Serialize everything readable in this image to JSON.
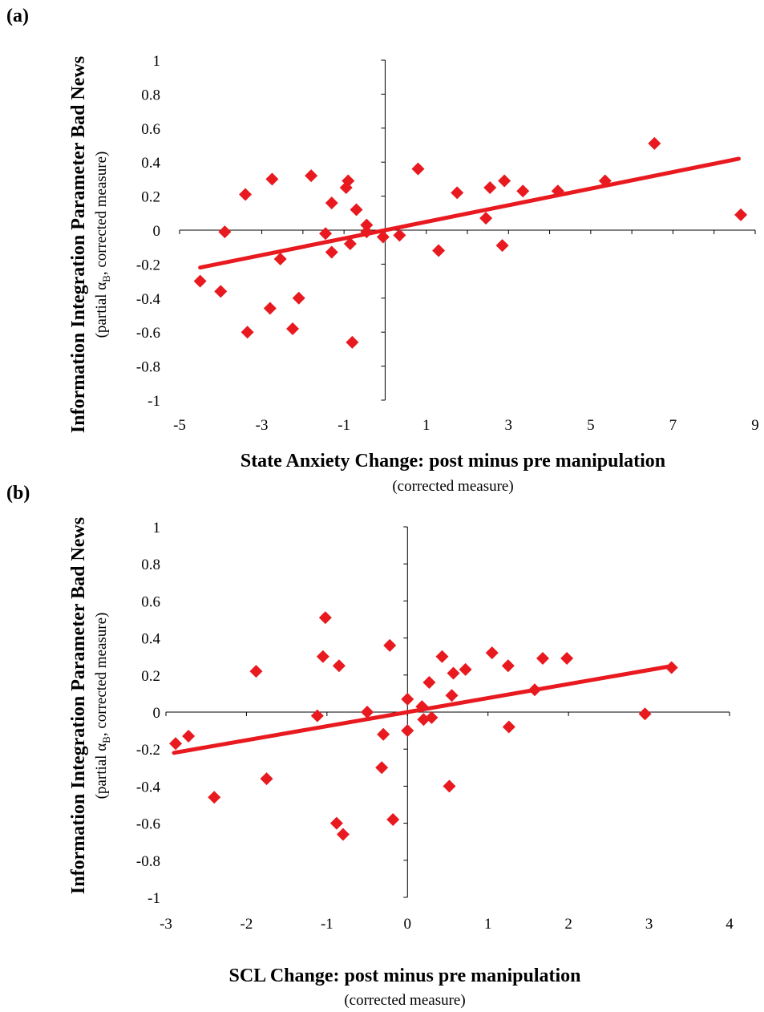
{
  "chart_data": [
    {
      "type": "scatter",
      "panel_label": "(a)",
      "xlabel": "State Anxiety Change: post minus pre manipulation",
      "xlabel_sub": "(corrected measure)",
      "ylabel": "Information Integration Parameter Bad News",
      "ylabel_sub_parts": [
        "(partial α",
        "B",
        ", corrected measure)"
      ],
      "xlim": [
        -5,
        9
      ],
      "ylim": [
        -1,
        1
      ],
      "xticks": [
        "-5",
        "-3",
        "-1",
        "1",
        "3",
        "5",
        "7",
        "9"
      ],
      "yticks": [
        "1",
        "0.8",
        "0.6",
        "0.4",
        "0.2",
        "0",
        "-0.2",
        "-0.4",
        "-0.6",
        "-0.8",
        "-1"
      ],
      "marker_color": "#e8191f",
      "line_color": "#e8191f",
      "trendline": {
        "x": [
          -4.5,
          8.6
        ],
        "y": [
          -0.22,
          0.42
        ]
      },
      "points": [
        {
          "x": -4.5,
          "y": -0.3
        },
        {
          "x": -4.0,
          "y": -0.36
        },
        {
          "x": -3.9,
          "y": -0.01
        },
        {
          "x": -3.4,
          "y": 0.21
        },
        {
          "x": -3.35,
          "y": -0.6
        },
        {
          "x": -2.8,
          "y": -0.46
        },
        {
          "x": -2.75,
          "y": 0.3
        },
        {
          "x": -2.55,
          "y": -0.17
        },
        {
          "x": -2.25,
          "y": -0.58
        },
        {
          "x": -2.1,
          "y": -0.4
        },
        {
          "x": -1.8,
          "y": 0.32
        },
        {
          "x": -1.45,
          "y": -0.02
        },
        {
          "x": -1.3,
          "y": 0.16
        },
        {
          "x": -1.3,
          "y": -0.13
        },
        {
          "x": -0.95,
          "y": 0.25
        },
        {
          "x": -0.9,
          "y": 0.29
        },
        {
          "x": -0.85,
          "y": -0.08
        },
        {
          "x": -0.8,
          "y": -0.66
        },
        {
          "x": -0.7,
          "y": 0.12
        },
        {
          "x": -0.45,
          "y": 0.03
        },
        {
          "x": -0.45,
          "y": -0.01
        },
        {
          "x": -0.05,
          "y": -0.04
        },
        {
          "x": 0.35,
          "y": -0.03
        },
        {
          "x": 0.8,
          "y": 0.36
        },
        {
          "x": 1.3,
          "y": -0.12
        },
        {
          "x": 1.75,
          "y": 0.22
        },
        {
          "x": 2.45,
          "y": 0.07
        },
        {
          "x": 2.55,
          "y": 0.25
        },
        {
          "x": 2.85,
          "y": -0.09
        },
        {
          "x": 2.9,
          "y": 0.29
        },
        {
          "x": 3.35,
          "y": 0.23
        },
        {
          "x": 4.2,
          "y": 0.23
        },
        {
          "x": 5.35,
          "y": 0.29
        },
        {
          "x": 6.55,
          "y": 0.51
        },
        {
          "x": 8.65,
          "y": 0.09
        }
      ]
    },
    {
      "type": "scatter",
      "panel_label": "(b)",
      "xlabel": "SCL Change: post minus pre manipulation",
      "xlabel_sub": "(corrected measure)",
      "ylabel": "Information Integration Parameter Bad News",
      "ylabel_sub_parts": [
        "(partial α",
        "B",
        ", corrected measure)"
      ],
      "xlim": [
        -3,
        4
      ],
      "ylim": [
        -1,
        1
      ],
      "xticks": [
        "-3",
        "-2",
        "-1",
        "0",
        "1",
        "2",
        "3",
        "4"
      ],
      "yticks": [
        "1",
        "0.8",
        "0.6",
        "0.4",
        "0.2",
        "0",
        "-0.2",
        "-0.4",
        "-0.6",
        "-0.8",
        "-1"
      ],
      "marker_color": "#e8191f",
      "line_color": "#e8191f",
      "trendline": {
        "x": [
          -2.9,
          3.3
        ],
        "y": [
          -0.22,
          0.25
        ]
      },
      "points": [
        {
          "x": -2.88,
          "y": -0.17
        },
        {
          "x": -2.72,
          "y": -0.13
        },
        {
          "x": -2.4,
          "y": -0.46
        },
        {
          "x": -1.88,
          "y": 0.22
        },
        {
          "x": -1.75,
          "y": -0.36
        },
        {
          "x": -1.12,
          "y": -0.02
        },
        {
          "x": -1.05,
          "y": 0.3
        },
        {
          "x": -1.02,
          "y": 0.51
        },
        {
          "x": -0.88,
          "y": -0.6
        },
        {
          "x": -0.85,
          "y": 0.25
        },
        {
          "x": -0.8,
          "y": -0.66
        },
        {
          "x": -0.5,
          "y": 0.0
        },
        {
          "x": -0.32,
          "y": -0.3
        },
        {
          "x": -0.3,
          "y": -0.12
        },
        {
          "x": -0.22,
          "y": 0.36
        },
        {
          "x": -0.18,
          "y": -0.58
        },
        {
          "x": 0.0,
          "y": 0.07
        },
        {
          "x": 0.0,
          "y": -0.1
        },
        {
          "x": 0.18,
          "y": 0.03
        },
        {
          "x": 0.2,
          "y": -0.04
        },
        {
          "x": 0.27,
          "y": 0.16
        },
        {
          "x": 0.3,
          "y": -0.03
        },
        {
          "x": 0.43,
          "y": 0.3
        },
        {
          "x": 0.52,
          "y": -0.4
        },
        {
          "x": 0.55,
          "y": 0.09
        },
        {
          "x": 0.57,
          "y": 0.21
        },
        {
          "x": 0.72,
          "y": 0.23
        },
        {
          "x": 1.05,
          "y": 0.32
        },
        {
          "x": 1.25,
          "y": 0.25
        },
        {
          "x": 1.26,
          "y": -0.08
        },
        {
          "x": 1.58,
          "y": 0.12
        },
        {
          "x": 1.68,
          "y": 0.29
        },
        {
          "x": 1.98,
          "y": 0.29
        },
        {
          "x": 2.95,
          "y": -0.01
        },
        {
          "x": 3.28,
          "y": 0.24
        }
      ]
    }
  ]
}
